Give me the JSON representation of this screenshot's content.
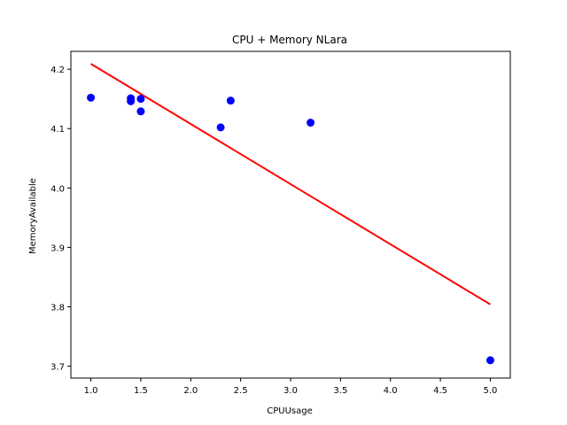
{
  "chart_data": {
    "type": "scatter",
    "title": "CPU + Memory NLara",
    "xlabel": "CPUUsage",
    "ylabel": "MemoryAvailable",
    "xlim": [
      0.8,
      5.2
    ],
    "ylim": [
      3.68,
      4.23
    ],
    "xticks": [
      1.0,
      1.5,
      2.0,
      2.5,
      3.0,
      3.5,
      4.0,
      4.5,
      5.0
    ],
    "xtick_labels": [
      "1.0",
      "1.5",
      "2.0",
      "2.5",
      "3.0",
      "3.5",
      "4.0",
      "4.5",
      "5.0"
    ],
    "yticks": [
      3.7,
      3.8,
      3.9,
      4.0,
      4.1,
      4.2
    ],
    "ytick_labels": [
      "3.7",
      "3.8",
      "3.9",
      "4.0",
      "4.1",
      "4.2"
    ],
    "grid": false,
    "points": {
      "color": "#0000ff",
      "x": [
        1.0,
        1.4,
        1.4,
        1.5,
        1.5,
        2.3,
        2.4,
        3.2,
        5.0
      ],
      "y": [
        4.152,
        4.151,
        4.146,
        4.15,
        4.129,
        4.102,
        4.147,
        4.11,
        3.71
      ]
    },
    "fit_line": {
      "color": "#ff0000",
      "x": [
        1.0,
        5.0
      ],
      "y": [
        4.209,
        3.804
      ]
    }
  }
}
